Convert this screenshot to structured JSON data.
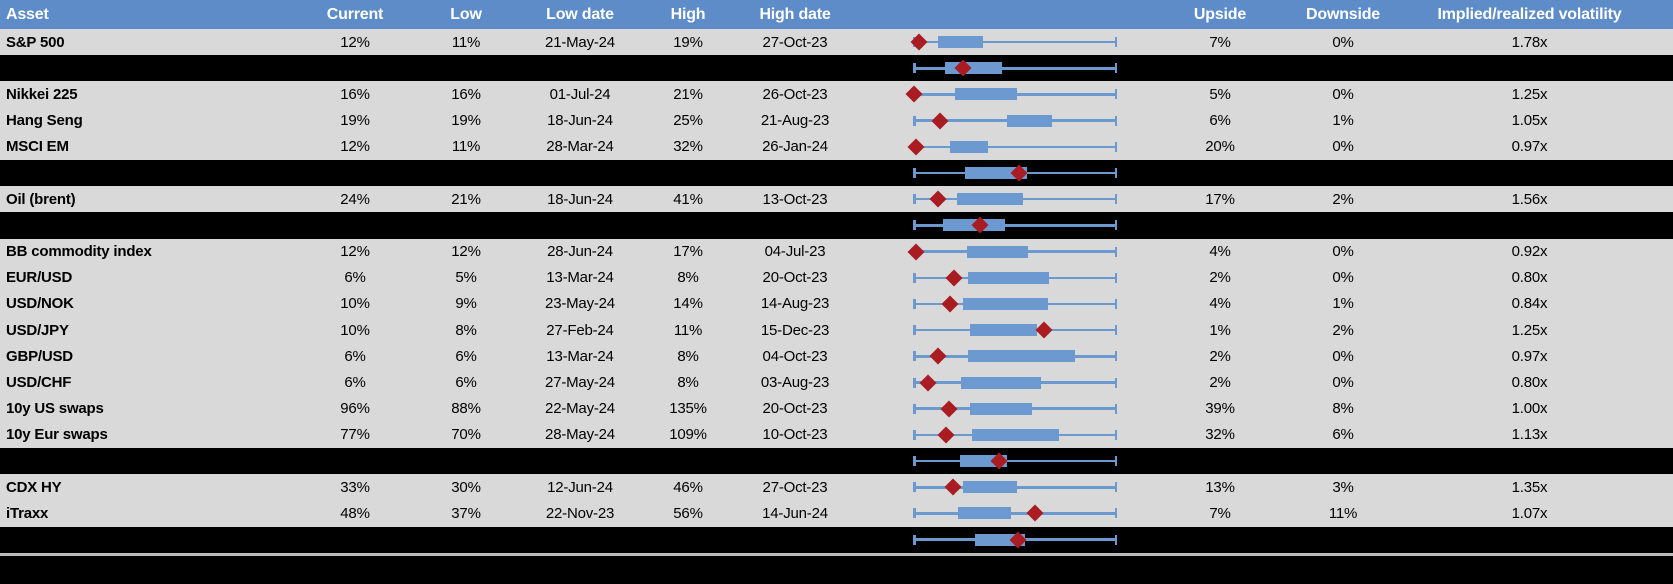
{
  "colors": {
    "header_bg": "#5d8cc8",
    "header_text": "#ffffff",
    "row_bg": "#d9d9d9",
    "separator_bg": "#000000",
    "box_blue": "#6d99d1",
    "diamond_red": "#a81c22",
    "text": "#000000",
    "bottom_divider": "#b9b9b9"
  },
  "chart_data": {
    "type": "table",
    "title": "",
    "subtitle": "",
    "legend": {
      "diamond_icon_meaning": "current implied volatility within 1y range",
      "box_meaning": "interquartile range of 1y volatility (normalized whisker = low-to-high range)"
    },
    "columns": [
      "Asset",
      "Current",
      "Low",
      "Low date",
      "High",
      "High date",
      "",
      "Upside",
      "Downside",
      "Implied/realized volatility"
    ],
    "rows": [
      {
        "type": "data",
        "asset": "S&P 500",
        "current": "12%",
        "low": "11%",
        "low_date": "21-May-24",
        "high": "19%",
        "high_date": "27-Oct-23",
        "upside": "7%",
        "downside": "0%",
        "implied": "1.78x",
        "box": {
          "diamond_pct": 2.9,
          "box_start_pct": 12.3,
          "box_end_pct": 34.3
        }
      },
      {
        "type": "separator",
        "box": {
          "diamond_pct": 24.5,
          "box_start_pct": 15.7,
          "box_end_pct": 43.6
        }
      },
      {
        "type": "data",
        "asset": "Nikkei 225",
        "current": "16%",
        "low": "16%",
        "low_date": "01-Jul-24",
        "high": "21%",
        "high_date": "26-Oct-23",
        "upside": "5%",
        "downside": "0%",
        "implied": "1.25x",
        "box": {
          "diamond_pct": 0.5,
          "box_start_pct": 20.6,
          "box_end_pct": 51.0
        }
      },
      {
        "type": "data",
        "asset": "Hang Seng",
        "current": "19%",
        "low": "19%",
        "low_date": "18-Jun-24",
        "high": "25%",
        "high_date": "21-Aug-23",
        "upside": "6%",
        "downside": "1%",
        "implied": "1.05x",
        "box": {
          "diamond_pct": 13.2,
          "box_start_pct": 46.1,
          "box_end_pct": 68.1
        }
      },
      {
        "type": "data",
        "asset": "MSCI EM",
        "current": "12%",
        "low": "11%",
        "low_date": "28-Mar-24",
        "high": "32%",
        "high_date": "26-Jan-24",
        "upside": "20%",
        "downside": "0%",
        "implied": "0.97x",
        "box": {
          "diamond_pct": 1.5,
          "box_start_pct": 18.1,
          "box_end_pct": 36.8
        }
      },
      {
        "type": "separator",
        "box": {
          "diamond_pct": 52.0,
          "box_start_pct": 25.5,
          "box_end_pct": 55.9
        }
      },
      {
        "type": "data",
        "asset": "Oil (brent)",
        "current": "24%",
        "low": "21%",
        "low_date": "18-Jun-24",
        "high": "41%",
        "high_date": "13-Oct-23",
        "upside": "17%",
        "downside": "2%",
        "implied": "1.56x",
        "box": {
          "diamond_pct": 12.3,
          "box_start_pct": 21.6,
          "box_end_pct": 53.9
        }
      },
      {
        "type": "separator",
        "box": {
          "diamond_pct": 32.8,
          "box_start_pct": 14.7,
          "box_end_pct": 45.1
        }
      },
      {
        "type": "data",
        "asset": "BB commodity index",
        "current": "12%",
        "low": "12%",
        "low_date": "28-Jun-24",
        "high": "17%",
        "high_date": "04-Jul-23",
        "upside": "4%",
        "downside": "0%",
        "implied": "0.92x",
        "box": {
          "diamond_pct": 1.5,
          "box_start_pct": 26.5,
          "box_end_pct": 56.4
        }
      },
      {
        "type": "data",
        "asset": "EUR/USD",
        "current": "6%",
        "low": "5%",
        "low_date": "13-Mar-24",
        "high": "8%",
        "high_date": "20-Oct-23",
        "upside": "2%",
        "downside": "0%",
        "implied": "0.80x",
        "box": {
          "diamond_pct": 20.1,
          "box_start_pct": 27.0,
          "box_end_pct": 66.7
        }
      },
      {
        "type": "data",
        "asset": "USD/NOK",
        "current": "10%",
        "low": "9%",
        "low_date": "23-May-24",
        "high": "14%",
        "high_date": "14-Aug-23",
        "upside": "4%",
        "downside": "1%",
        "implied": "0.84x",
        "box": {
          "diamond_pct": 18.1,
          "box_start_pct": 24.5,
          "box_end_pct": 66.2
        }
      },
      {
        "type": "data",
        "asset": "USD/JPY",
        "current": "10%",
        "low": "8%",
        "low_date": "27-Feb-24",
        "high": "11%",
        "high_date": "15-Dec-23",
        "upside": "1%",
        "downside": "2%",
        "implied": "1.25x",
        "box": {
          "diamond_pct": 64.2,
          "box_start_pct": 27.9,
          "box_end_pct": 60.8
        }
      },
      {
        "type": "data",
        "asset": "GBP/USD",
        "current": "6%",
        "low": "6%",
        "low_date": "13-Mar-24",
        "high": "8%",
        "high_date": "04-Oct-23",
        "upside": "2%",
        "downside": "0%",
        "implied": "0.97x",
        "box": {
          "diamond_pct": 12.3,
          "box_start_pct": 27.0,
          "box_end_pct": 79.4
        }
      },
      {
        "type": "data",
        "asset": "USD/CHF",
        "current": "6%",
        "low": "6%",
        "low_date": "27-May-24",
        "high": "8%",
        "high_date": "03-Aug-23",
        "upside": "2%",
        "downside": "0%",
        "implied": "0.80x",
        "box": {
          "diamond_pct": 7.4,
          "box_start_pct": 23.5,
          "box_end_pct": 62.7
        }
      },
      {
        "type": "data",
        "asset": "10y US swaps",
        "current": "96%",
        "low": "88%",
        "low_date": "22-May-24",
        "high": "135%",
        "high_date": "20-Oct-23",
        "upside": "39%",
        "downside": "8%",
        "implied": "1.00x",
        "box": {
          "diamond_pct": 17.6,
          "box_start_pct": 27.9,
          "box_end_pct": 58.3
        }
      },
      {
        "type": "data",
        "asset": "10y Eur swaps",
        "current": "77%",
        "low": "70%",
        "low_date": "28-May-24",
        "high": "109%",
        "high_date": "10-Oct-23",
        "upside": "32%",
        "downside": "6%",
        "implied": "1.13x",
        "box": {
          "diamond_pct": 16.2,
          "box_start_pct": 28.9,
          "box_end_pct": 71.6
        }
      },
      {
        "type": "separator",
        "box": {
          "diamond_pct": 42.2,
          "box_start_pct": 23.0,
          "box_end_pct": 46.1
        }
      },
      {
        "type": "data",
        "asset": "CDX HY",
        "current": "33%",
        "low": "30%",
        "low_date": "12-Jun-24",
        "high": "46%",
        "high_date": "27-Oct-23",
        "upside": "13%",
        "downside": "3%",
        "implied": "1.35x",
        "box": {
          "diamond_pct": 19.6,
          "box_start_pct": 24.5,
          "box_end_pct": 51.0
        }
      },
      {
        "type": "data",
        "asset": "iTraxx",
        "current": "48%",
        "low": "37%",
        "low_date": "22-Nov-23",
        "high": "56%",
        "high_date": "14-Jun-24",
        "upside": "7%",
        "downside": "11%",
        "implied": "1.07x",
        "box": {
          "diamond_pct": 59.8,
          "box_start_pct": 22.1,
          "box_end_pct": 48.0
        }
      },
      {
        "type": "separator",
        "box": {
          "diamond_pct": 51.5,
          "box_start_pct": 30.4,
          "box_end_pct": 54.9
        }
      }
    ]
  }
}
